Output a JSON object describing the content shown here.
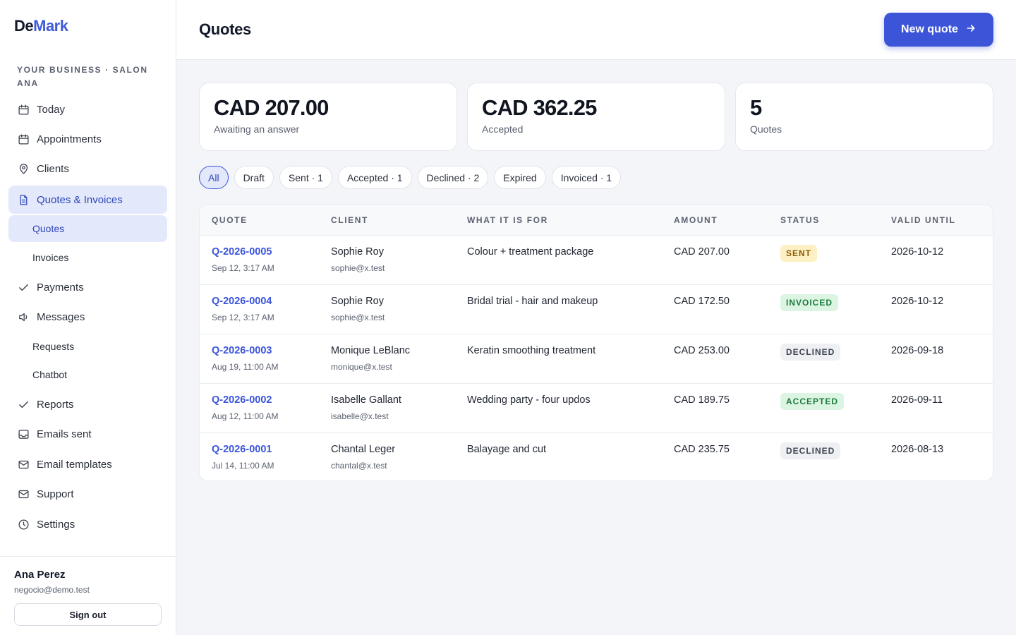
{
  "brand": {
    "part1": "De",
    "part2": "Mark"
  },
  "business_label": "YOUR BUSINESS · SALON ANA",
  "nav": {
    "today": "Today",
    "appointments": "Appointments",
    "clients": "Clients",
    "quotes_invoices": "Quotes & Invoices",
    "quotes": "Quotes",
    "invoices": "Invoices",
    "payments": "Payments",
    "messages": "Messages",
    "requests": "Requests",
    "chatbot": "Chatbot",
    "reports": "Reports",
    "emails_sent": "Emails sent",
    "email_templates": "Email templates",
    "support": "Support",
    "settings": "Settings"
  },
  "user": {
    "name": "Ana Perez",
    "email": "negocio@demo.test",
    "signout": "Sign out"
  },
  "header": {
    "title": "Quotes",
    "new_button": "New quote",
    "new_button_icon": "arrow-right-icon"
  },
  "stats": [
    {
      "value": "CAD 207.00",
      "label": "Awaiting an answer"
    },
    {
      "value": "CAD 362.25",
      "label": "Accepted"
    },
    {
      "value": "5",
      "label": "Quotes"
    }
  ],
  "filters": [
    "All",
    "Draft",
    "Sent · 1",
    "Accepted · 1",
    "Declined · 2",
    "Expired",
    "Invoiced · 1"
  ],
  "active_filter": "All",
  "table": {
    "headers": {
      "quote": "QUOTE",
      "client": "CLIENT",
      "what": "WHAT IT IS FOR",
      "amount": "AMOUNT",
      "status": "STATUS",
      "valid": "VALID UNTIL"
    },
    "rows": [
      {
        "id": "Q-2026-0005",
        "date": "Sep 12, 3:17 AM",
        "client": "Sophie Roy",
        "email": "sophie@x.test",
        "what": "Colour + treatment package",
        "amount": "CAD 207.00",
        "status": "SENT",
        "valid": "2026-10-12"
      },
      {
        "id": "Q-2026-0004",
        "date": "Sep 12, 3:17 AM",
        "client": "Sophie Roy",
        "email": "sophie@x.test",
        "what": "Bridal trial - hair and makeup",
        "amount": "CAD 172.50",
        "status": "INVOICED",
        "valid": "2026-10-12"
      },
      {
        "id": "Q-2026-0003",
        "date": "Aug 19, 11:00 AM",
        "client": "Monique LeBlanc",
        "email": "monique@x.test",
        "what": "Keratin smoothing treatment",
        "amount": "CAD 253.00",
        "status": "DECLINED",
        "valid": "2026-09-18"
      },
      {
        "id": "Q-2026-0002",
        "date": "Aug 12, 11:00 AM",
        "client": "Isabelle Gallant",
        "email": "isabelle@x.test",
        "what": "Wedding party - four updos",
        "amount": "CAD 189.75",
        "status": "ACCEPTED",
        "valid": "2026-09-11"
      },
      {
        "id": "Q-2026-0001",
        "date": "Jul 14, 11:00 AM",
        "client": "Chantal Leger",
        "email": "chantal@x.test",
        "what": "Balayage and cut",
        "amount": "CAD 235.75",
        "status": "DECLINED",
        "valid": "2026-08-13"
      }
    ]
  },
  "status_colors": {
    "SENT": {
      "bg": "#fdf0c4",
      "fg": "#8a5a00"
    },
    "INVOICED": {
      "bg": "#dcf5e3",
      "fg": "#1c7a3c"
    },
    "ACCEPTED": {
      "bg": "#dcf5e3",
      "fg": "#1c7a3c"
    },
    "DECLINED": {
      "bg": "#eef0f3",
      "fg": "#3f4552"
    }
  },
  "colors": {
    "accent": "#3b54d8",
    "accent_soft": "#e3e8fb"
  }
}
